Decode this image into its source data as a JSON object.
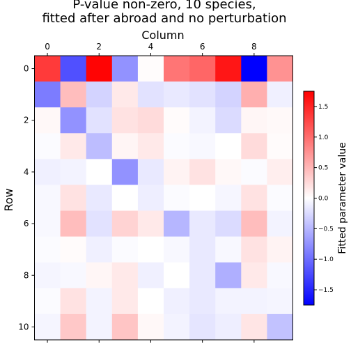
{
  "chart_data": {
    "type": "heatmap",
    "title_lines": [
      "P-value non-zero, 10 species,",
      "fitted after abroad and no perturbation"
    ],
    "xlabel": "Column",
    "ylabel": "Row",
    "colorbar_label": "Fitted parameter value",
    "colormap": "bwr",
    "color_low": "#0000ff",
    "color_mid": "#ffffff",
    "color_high": "#ff0000",
    "vmin": -1.75,
    "vmax": 1.75,
    "x_ticks": [
      "0",
      "2",
      "4",
      "6",
      "8"
    ],
    "y_ticks": [
      "0",
      "2",
      "4",
      "6",
      "8",
      "10"
    ],
    "colorbar_ticks": [
      "1.5",
      "1.0",
      "0.5",
      "0.0",
      "−0.5",
      "−1.0",
      "−1.5"
    ],
    "colorbar_tick_values": [
      1.5,
      1.0,
      0.5,
      0.0,
      -0.5,
      -1.0,
      -1.5
    ],
    "rows": [
      0,
      1,
      2,
      3,
      4,
      5,
      6,
      7,
      8,
      9,
      10
    ],
    "columns": [
      0,
      1,
      2,
      3,
      4,
      5,
      6,
      7,
      8,
      9
    ],
    "values": [
      [
        1.35,
        -1.2,
        1.72,
        -0.75,
        0.02,
        0.95,
        1.05,
        1.6,
        -1.75,
        0.75
      ],
      [
        -0.9,
        0.45,
        -0.3,
        0.15,
        -0.2,
        -0.15,
        -0.2,
        -0.3,
        0.55,
        -0.1
      ],
      [
        0.05,
        -0.75,
        -0.2,
        0.2,
        0.25,
        0.03,
        -0.08,
        -0.25,
        0.06,
        0.04
      ],
      [
        -0.03,
        0.15,
        -0.45,
        0.07,
        0.15,
        -0.03,
        -0.05,
        0.0,
        0.25,
        0.03
      ],
      [
        -0.1,
        -0.08,
        0.0,
        -0.75,
        -0.15,
        0.08,
        0.2,
        0.05,
        -0.03,
        0.12
      ],
      [
        -0.05,
        0.2,
        -0.15,
        0.0,
        -0.12,
        -0.03,
        0.0,
        -0.06,
        0.2,
        -0.03
      ],
      [
        -0.05,
        0.45,
        -0.2,
        0.3,
        0.15,
        -0.5,
        -0.15,
        -0.25,
        0.45,
        -0.08
      ],
      [
        -0.03,
        0.03,
        -0.1,
        -0.03,
        0.0,
        -0.05,
        -0.15,
        -0.05,
        0.2,
        0.08
      ],
      [
        -0.07,
        -0.05,
        0.06,
        0.15,
        -0.1,
        0.0,
        -0.15,
        -0.55,
        0.15,
        -0.05
      ],
      [
        -0.03,
        0.2,
        -0.08,
        0.15,
        0.0,
        -0.1,
        -0.15,
        -0.08,
        -0.08,
        -0.07
      ],
      [
        -0.07,
        0.38,
        -0.08,
        0.4,
        0.05,
        -0.08,
        -0.18,
        -0.12,
        0.18,
        -0.42
      ]
    ]
  }
}
